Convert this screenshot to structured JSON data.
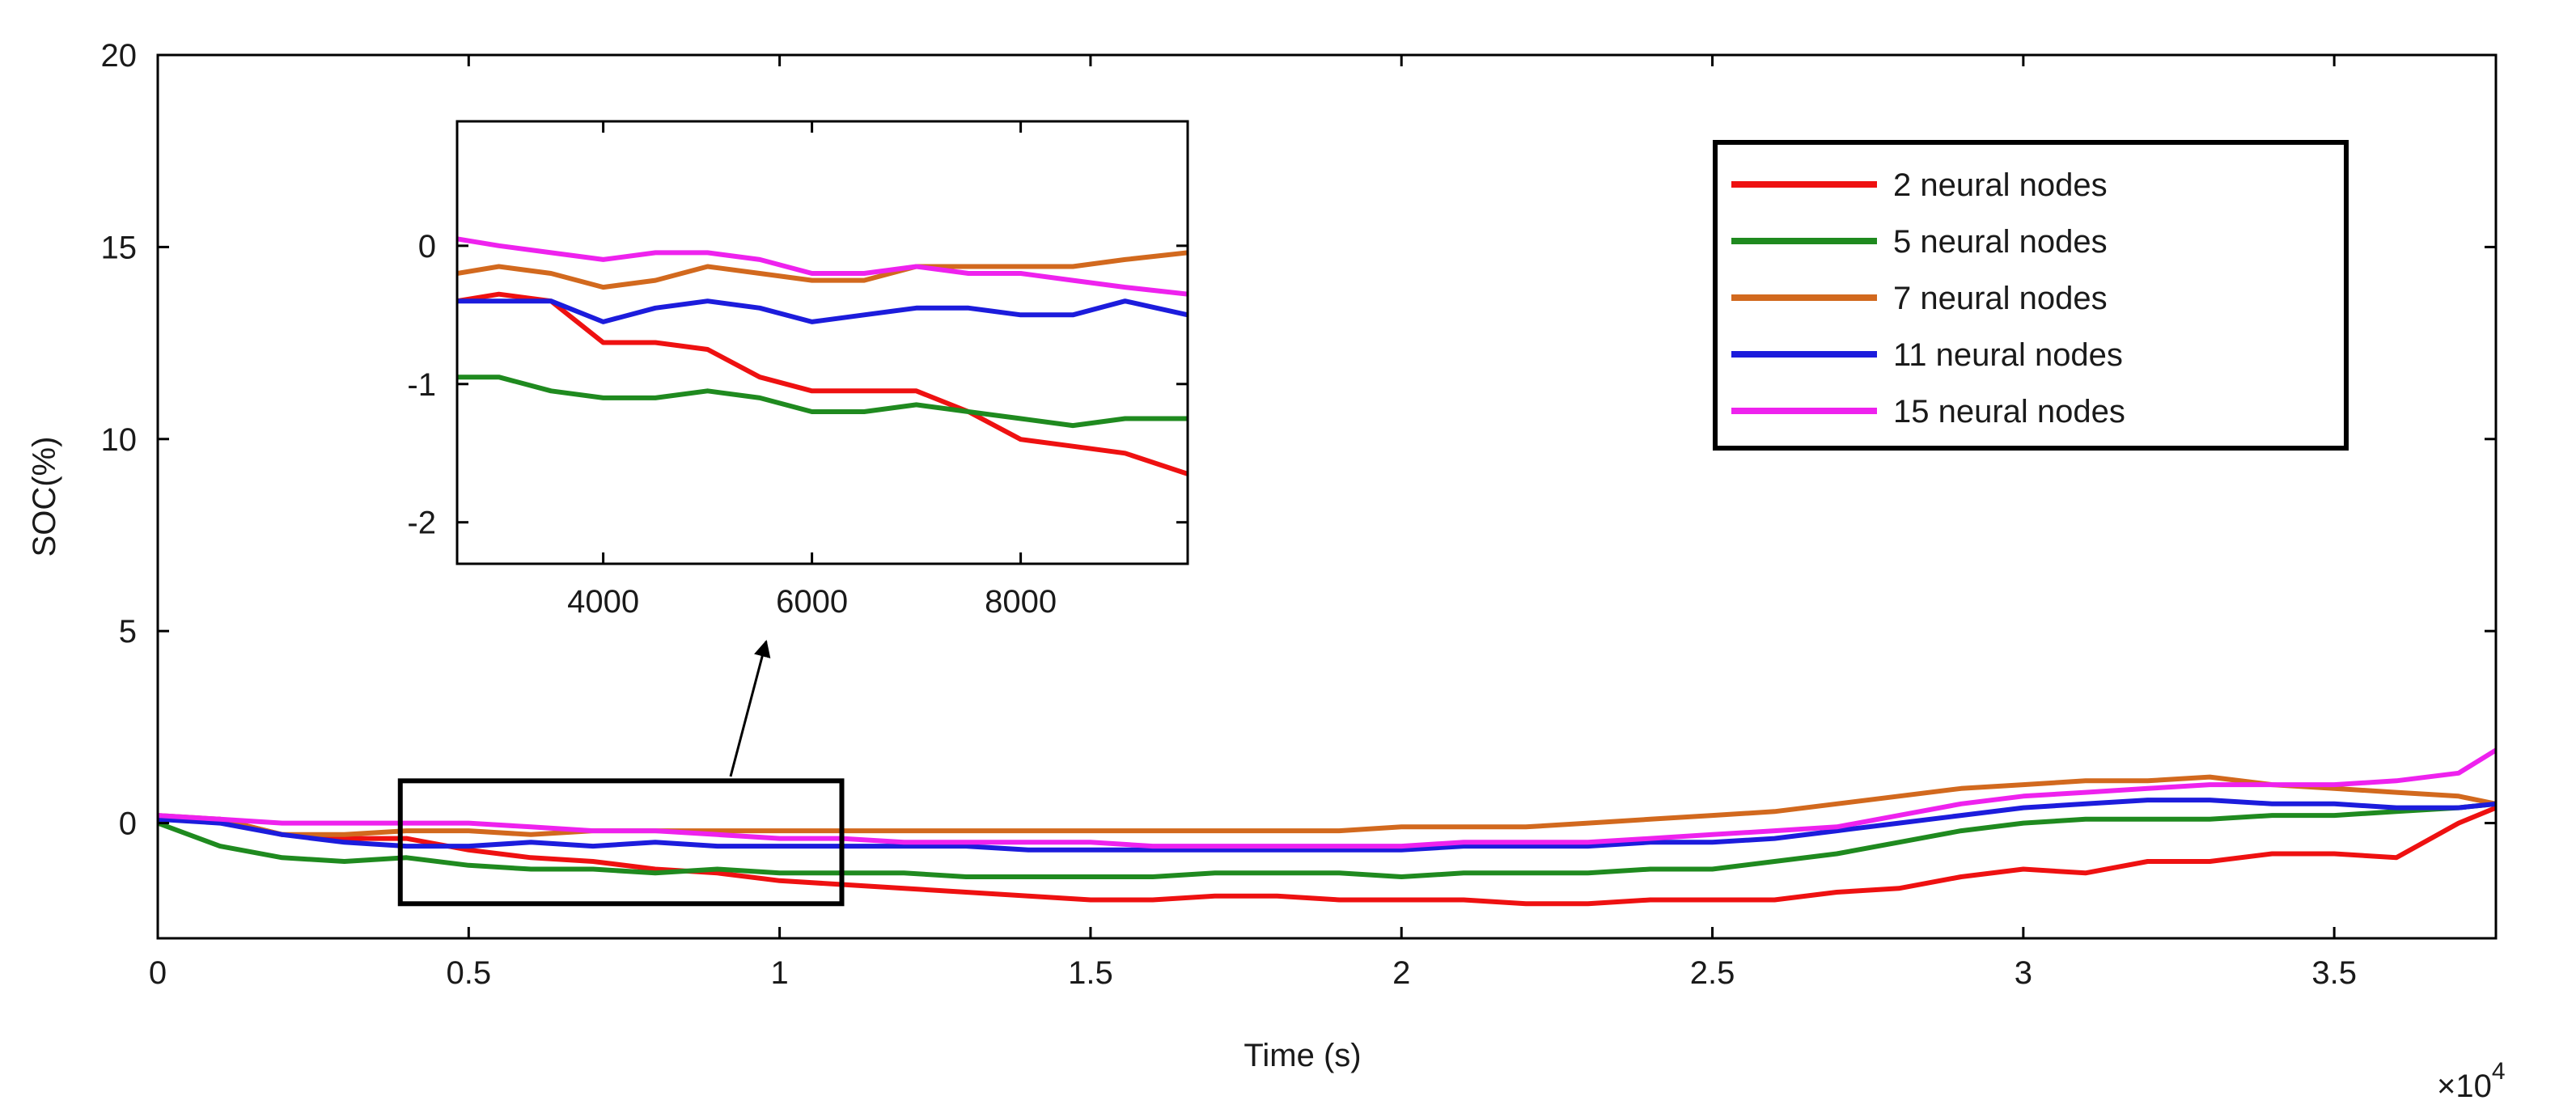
{
  "chart_data": [
    {
      "type": "line",
      "name": "main",
      "xlabel": "Time (s)",
      "ylabel": "SOC(%)",
      "x_multiplier_label": "×10",
      "x_multiplier_exp": "4",
      "xlim": [
        0,
        37600
      ],
      "ylim": [
        -3,
        20
      ],
      "xticks": [
        0,
        5000,
        10000,
        15000,
        20000,
        25000,
        30000,
        35000
      ],
      "xtick_labels": [
        "0",
        "0.5",
        "1",
        "1.5",
        "2",
        "2.5",
        "3",
        "3.5"
      ],
      "yticks": [
        0,
        5,
        10,
        15,
        20
      ],
      "ytick_labels": [
        "0",
        "5",
        "10",
        "15",
        "20"
      ],
      "grid": false,
      "legend_position": "top-right",
      "zoom_box": {
        "x": [
          3900,
          11000
        ],
        "y": [
          -2.1,
          1.1
        ]
      },
      "series": [
        {
          "name": "2 neural nodes",
          "color": "#ee1111",
          "x": [
            0,
            1000,
            2000,
            3000,
            4000,
            5000,
            6000,
            7000,
            8000,
            9000,
            10000,
            11000,
            12000,
            13000,
            14000,
            15000,
            16000,
            17000,
            18000,
            19000,
            20000,
            21000,
            22000,
            23000,
            24000,
            25000,
            26000,
            27000,
            28000,
            29000,
            30000,
            31000,
            32000,
            33000,
            34000,
            35000,
            36000,
            37000,
            37600
          ],
          "y": [
            0.1,
            0.1,
            -0.3,
            -0.4,
            -0.4,
            -0.7,
            -0.9,
            -1.0,
            -1.2,
            -1.3,
            -1.5,
            -1.6,
            -1.7,
            -1.8,
            -1.9,
            -2.0,
            -2.0,
            -1.9,
            -1.9,
            -2.0,
            -2.0,
            -2.0,
            -2.1,
            -2.1,
            -2.0,
            -2.0,
            -2.0,
            -1.8,
            -1.7,
            -1.4,
            -1.2,
            -1.3,
            -1.0,
            -1.0,
            -0.8,
            -0.8,
            -0.9,
            0.0,
            0.4
          ]
        },
        {
          "name": "5 neural nodes",
          "color": "#1f8a1f",
          "x": [
            0,
            1000,
            2000,
            3000,
            4000,
            5000,
            6000,
            7000,
            8000,
            9000,
            10000,
            11000,
            12000,
            13000,
            14000,
            15000,
            16000,
            17000,
            18000,
            19000,
            20000,
            21000,
            22000,
            23000,
            24000,
            25000,
            26000,
            27000,
            28000,
            29000,
            30000,
            31000,
            32000,
            33000,
            34000,
            35000,
            36000,
            37000,
            37600
          ],
          "y": [
            0.0,
            -0.6,
            -0.9,
            -1.0,
            -0.9,
            -1.1,
            -1.2,
            -1.2,
            -1.3,
            -1.2,
            -1.3,
            -1.3,
            -1.3,
            -1.4,
            -1.4,
            -1.4,
            -1.4,
            -1.3,
            -1.3,
            -1.3,
            -1.4,
            -1.3,
            -1.3,
            -1.3,
            -1.2,
            -1.2,
            -1.0,
            -0.8,
            -0.5,
            -0.2,
            0.0,
            0.1,
            0.1,
            0.1,
            0.2,
            0.2,
            0.3,
            0.4,
            0.5
          ]
        },
        {
          "name": "7 neural nodes",
          "color": "#d2691e",
          "x": [
            0,
            1000,
            2000,
            3000,
            4000,
            5000,
            6000,
            7000,
            8000,
            9000,
            10000,
            11000,
            12000,
            13000,
            14000,
            15000,
            16000,
            17000,
            18000,
            19000,
            20000,
            21000,
            22000,
            23000,
            24000,
            25000,
            26000,
            27000,
            28000,
            29000,
            30000,
            31000,
            32000,
            33000,
            34000,
            35000,
            36000,
            37000,
            37600
          ],
          "y": [
            0.2,
            0.1,
            -0.3,
            -0.3,
            -0.2,
            -0.2,
            -0.3,
            -0.2,
            -0.2,
            -0.2,
            -0.2,
            -0.2,
            -0.2,
            -0.2,
            -0.2,
            -0.2,
            -0.2,
            -0.2,
            -0.2,
            -0.2,
            -0.1,
            -0.1,
            -0.1,
            0.0,
            0.1,
            0.2,
            0.3,
            0.5,
            0.7,
            0.9,
            1.0,
            1.1,
            1.1,
            1.2,
            1.0,
            0.9,
            0.8,
            0.7,
            0.5
          ]
        },
        {
          "name": "11 neural nodes",
          "color": "#1c1cdc",
          "x": [
            0,
            1000,
            2000,
            3000,
            4000,
            5000,
            6000,
            7000,
            8000,
            9000,
            10000,
            11000,
            12000,
            13000,
            14000,
            15000,
            16000,
            17000,
            18000,
            19000,
            20000,
            21000,
            22000,
            23000,
            24000,
            25000,
            26000,
            27000,
            28000,
            29000,
            30000,
            31000,
            32000,
            33000,
            34000,
            35000,
            36000,
            37000,
            37600
          ],
          "y": [
            0.1,
            0.0,
            -0.3,
            -0.5,
            -0.6,
            -0.6,
            -0.5,
            -0.6,
            -0.5,
            -0.6,
            -0.6,
            -0.6,
            -0.6,
            -0.6,
            -0.7,
            -0.7,
            -0.7,
            -0.7,
            -0.7,
            -0.7,
            -0.7,
            -0.6,
            -0.6,
            -0.6,
            -0.5,
            -0.5,
            -0.4,
            -0.2,
            0.0,
            0.2,
            0.4,
            0.5,
            0.6,
            0.6,
            0.5,
            0.5,
            0.4,
            0.4,
            0.5
          ]
        },
        {
          "name": "15 neural nodes",
          "color": "#ee22ee",
          "x": [
            0,
            1000,
            2000,
            3000,
            4000,
            5000,
            6000,
            7000,
            8000,
            9000,
            10000,
            11000,
            12000,
            13000,
            14000,
            15000,
            16000,
            17000,
            18000,
            19000,
            20000,
            21000,
            22000,
            23000,
            24000,
            25000,
            26000,
            27000,
            28000,
            29000,
            30000,
            31000,
            32000,
            33000,
            34000,
            35000,
            36000,
            37000,
            37600
          ],
          "y": [
            0.2,
            0.1,
            0.0,
            0.0,
            0.0,
            0.0,
            -0.1,
            -0.2,
            -0.2,
            -0.3,
            -0.4,
            -0.4,
            -0.5,
            -0.5,
            -0.5,
            -0.5,
            -0.6,
            -0.6,
            -0.6,
            -0.6,
            -0.6,
            -0.5,
            -0.5,
            -0.5,
            -0.4,
            -0.3,
            -0.2,
            -0.1,
            0.2,
            0.5,
            0.7,
            0.8,
            0.9,
            1.0,
            1.0,
            1.0,
            1.1,
            1.3,
            1.9
          ]
        }
      ]
    },
    {
      "type": "line",
      "name": "inset",
      "xlim": [
        2600,
        9600
      ],
      "ylim": [
        -2.3,
        0.9
      ],
      "xticks": [
        4000,
        6000,
        8000
      ],
      "xtick_labels": [
        "4000",
        "6000",
        "8000"
      ],
      "yticks": [
        0,
        -1,
        -2
      ],
      "ytick_labels": [
        "0",
        "-1",
        "-2"
      ],
      "grid": false,
      "series": [
        {
          "name": "2 neural nodes",
          "color": "#ee1111",
          "x": [
            2600,
            3000,
            3500,
            4000,
            4500,
            5000,
            5500,
            6000,
            6500,
            7000,
            7500,
            8000,
            8500,
            9000,
            9600
          ],
          "y": [
            -0.4,
            -0.35,
            -0.4,
            -0.7,
            -0.7,
            -0.75,
            -0.95,
            -1.05,
            -1.05,
            -1.05,
            -1.2,
            -1.4,
            -1.45,
            -1.5,
            -1.65
          ]
        },
        {
          "name": "5 neural nodes",
          "color": "#1f8a1f",
          "x": [
            2600,
            3000,
            3500,
            4000,
            4500,
            5000,
            5500,
            6000,
            6500,
            7000,
            7500,
            8000,
            8500,
            9000,
            9600
          ],
          "y": [
            -0.95,
            -0.95,
            -1.05,
            -1.1,
            -1.1,
            -1.05,
            -1.1,
            -1.2,
            -1.2,
            -1.15,
            -1.2,
            -1.25,
            -1.3,
            -1.25,
            -1.25
          ]
        },
        {
          "name": "7 neural nodes",
          "color": "#d2691e",
          "x": [
            2600,
            3000,
            3500,
            4000,
            4500,
            5000,
            5500,
            6000,
            6500,
            7000,
            7500,
            8000,
            8500,
            9000,
            9600
          ],
          "y": [
            -0.2,
            -0.15,
            -0.2,
            -0.3,
            -0.25,
            -0.15,
            -0.2,
            -0.25,
            -0.25,
            -0.15,
            -0.15,
            -0.15,
            -0.15,
            -0.1,
            -0.05
          ]
        },
        {
          "name": "11 neural nodes",
          "color": "#1c1cdc",
          "x": [
            2600,
            3000,
            3500,
            4000,
            4500,
            5000,
            5500,
            6000,
            6500,
            7000,
            7500,
            8000,
            8500,
            9000,
            9600
          ],
          "y": [
            -0.4,
            -0.4,
            -0.4,
            -0.55,
            -0.45,
            -0.4,
            -0.45,
            -0.55,
            -0.5,
            -0.45,
            -0.45,
            -0.5,
            -0.5,
            -0.4,
            -0.5
          ]
        },
        {
          "name": "15 neural nodes",
          "color": "#ee22ee",
          "x": [
            2600,
            3000,
            3500,
            4000,
            4500,
            5000,
            5500,
            6000,
            6500,
            7000,
            7500,
            8000,
            8500,
            9000,
            9600
          ],
          "y": [
            0.05,
            0.0,
            -0.05,
            -0.1,
            -0.05,
            -0.05,
            -0.1,
            -0.2,
            -0.2,
            -0.15,
            -0.2,
            -0.2,
            -0.25,
            -0.3,
            -0.35
          ]
        }
      ]
    }
  ]
}
